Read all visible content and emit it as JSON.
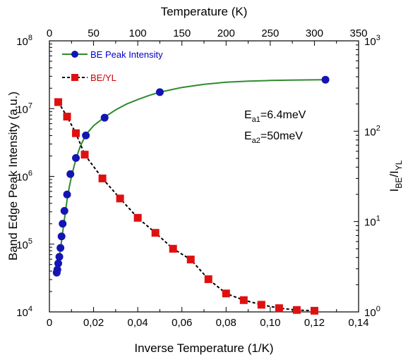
{
  "chart_data": {
    "type": "scatter",
    "xlabel": "Inverse Temperature (1/K)",
    "xlabel_top": "Temperature (K)",
    "ylabel_left": "Band Edge Peak Intensity (a.u.)",
    "ylabel_right": {
      "main": "I",
      "sub1": "BE",
      "mid": "/I",
      "sub2": "YL"
    },
    "xlim": [
      0,
      0.14
    ],
    "xlim_top": [
      0,
      350
    ],
    "ylim_left": [
      10000,
      100000000
    ],
    "ylim_right": [
      1,
      1000
    ],
    "y_left_scale": "log",
    "y_right_scale": "log",
    "x_ticks": [
      {
        "v": 0,
        "label": "0"
      },
      {
        "v": 0.02,
        "label": "0,02"
      },
      {
        "v": 0.04,
        "label": "0,04"
      },
      {
        "v": 0.06,
        "label": "0,06"
      },
      {
        "v": 0.08,
        "label": "0,08"
      },
      {
        "v": 0.1,
        "label": "0,10"
      },
      {
        "v": 0.12,
        "label": "0,12"
      },
      {
        "v": 0.14,
        "label": "0,14"
      }
    ],
    "x_top_ticks": [
      {
        "v": 0,
        "label": "0"
      },
      {
        "v": 50,
        "label": "50"
      },
      {
        "v": 100,
        "label": "100"
      },
      {
        "v": 150,
        "label": "150"
      },
      {
        "v": 200,
        "label": "200"
      },
      {
        "v": 250,
        "label": "250"
      },
      {
        "v": 300,
        "label": "300"
      },
      {
        "v": 350,
        "label": "350"
      }
    ],
    "y_left_ticks": [
      {
        "v": 10000,
        "base": "10",
        "exp": "4"
      },
      {
        "v": 100000,
        "base": "10",
        "exp": "5"
      },
      {
        "v": 1000000,
        "base": "10",
        "exp": "6"
      },
      {
        "v": 10000000,
        "base": "10",
        "exp": "7"
      },
      {
        "v": 100000000,
        "base": "10",
        "exp": "8"
      }
    ],
    "y_right_ticks": [
      {
        "v": 1,
        "base": "10",
        "exp": "0"
      },
      {
        "v": 10,
        "base": "10",
        "exp": "1"
      },
      {
        "v": 100,
        "base": "10",
        "exp": "2"
      },
      {
        "v": 1000,
        "base": "10",
        "exp": "3"
      }
    ],
    "series": [
      {
        "name": "BE Peak Intensity",
        "axis": "left",
        "marker": "circle",
        "color": "#1414b4",
        "x": [
          0.0033,
          0.0036,
          0.004,
          0.0045,
          0.005,
          0.0055,
          0.006,
          0.0068,
          0.008,
          0.0095,
          0.012,
          0.0165,
          0.025,
          0.05,
          0.125
        ],
        "y": [
          38000,
          42000,
          52000,
          65000,
          88000,
          130000,
          200000,
          310000,
          540000,
          1080000,
          1870000,
          4020000,
          7340000,
          17500000,
          26700000
        ]
      },
      {
        "name": "",
        "axis": "left",
        "type": "line",
        "color": "#2e8b2e",
        "x": [
          0.003,
          0.004,
          0.005,
          0.006,
          0.007,
          0.008,
          0.009,
          0.01,
          0.012,
          0.014,
          0.016,
          0.018,
          0.02,
          0.025,
          0.03,
          0.035,
          0.04,
          0.045,
          0.05,
          0.06,
          0.07,
          0.08,
          0.09,
          0.1,
          0.11,
          0.12,
          0.125
        ],
        "y": [
          36000,
          52000,
          82000,
          150000,
          260000,
          450000,
          700000,
          1000000,
          1800000,
          2800000,
          3800000,
          4700000,
          5600000,
          7500000,
          9600000,
          11700000,
          13600000,
          15600000,
          17500000,
          20500000,
          22800000,
          24500000,
          25400000,
          26000000,
          26400000,
          26600000,
          26700000
        ]
      },
      {
        "name": "BE/YL",
        "axis": "right",
        "marker": "square",
        "color": "#e01010",
        "x": [
          0.004,
          0.008,
          0.012,
          0.016,
          0.024,
          0.032,
          0.04,
          0.048,
          0.056,
          0.064,
          0.072,
          0.08,
          0.088,
          0.096,
          0.104,
          0.112,
          0.12
        ],
        "y": [
          210,
          145,
          95,
          55,
          30,
          18,
          11,
          7.5,
          5.0,
          3.8,
          2.3,
          1.6,
          1.35,
          1.2,
          1.1,
          1.05,
          1.03
        ]
      }
    ],
    "legend": [
      {
        "label": "BE Peak Intensity",
        "marker": "circle",
        "line_color": "#2e8b2e",
        "marker_color": "#1414b4",
        "dash": false
      },
      {
        "label": "BE/YL",
        "marker": "square",
        "line_color": "#000000",
        "marker_color": "#e01010",
        "dash": true
      }
    ],
    "legend_position": "top-left",
    "annotations": [
      {
        "main": "E",
        "sub": "a1",
        "rest": "=6.4meV"
      },
      {
        "main": "E",
        "sub": "a2",
        "rest": "=50meV"
      }
    ]
  }
}
